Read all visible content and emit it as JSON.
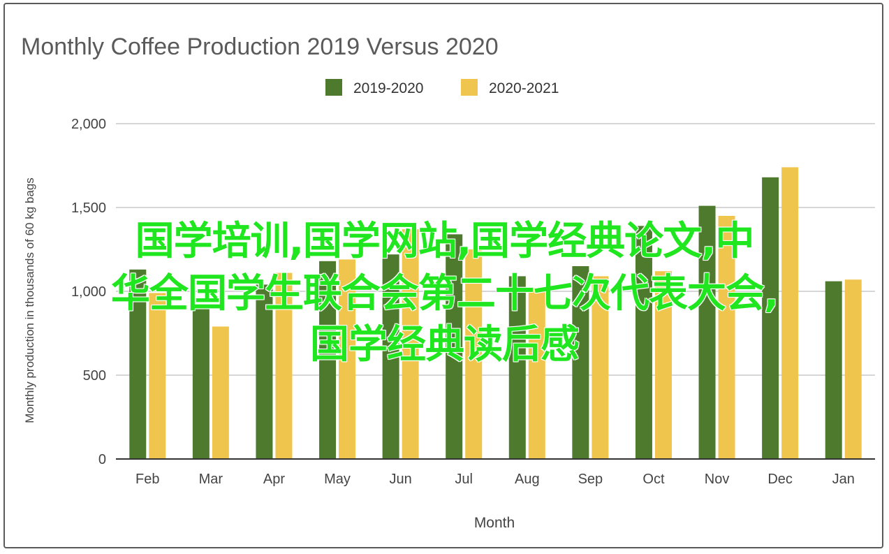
{
  "chart_data": {
    "type": "bar",
    "title": "Monthly Coffee Production 2019 Versus 2020",
    "xlabel": "Month",
    "ylabel": "Monthly production in thousands of 60 kg bags",
    "categories": [
      "Feb",
      "Mar",
      "Apr",
      "May",
      "Jun",
      "Jul",
      "Aug",
      "Sep",
      "Oct",
      "Nov",
      "Dec",
      "Jan"
    ],
    "series": [
      {
        "name": "2019-2020",
        "color": "#4e7a2d",
        "values": [
          1130,
          910,
          1040,
          1180,
          1220,
          1340,
          1090,
          1150,
          1390,
          1510,
          1680,
          1060
        ]
      },
      {
        "name": "2020-2021",
        "color": "#f0c54e",
        "values": [
          990,
          790,
          1110,
          1190,
          1370,
          1250,
          1020,
          1090,
          1120,
          1450,
          1740,
          1070
        ]
      }
    ],
    "ylim": [
      0,
      2000
    ],
    "yticks": [
      0,
      500,
      1000,
      1500,
      2000
    ],
    "ytick_labels": [
      "0",
      "500",
      "1,000",
      "1,500",
      "2,000"
    ],
    "grid": true,
    "legend_position": "top-center"
  },
  "colors": {
    "series_1": "#4e7a2d",
    "series_2": "#f0c54e",
    "grid": "#d6d6d6",
    "axis_text": "#444444",
    "title_text": "#5a5a5a",
    "overlay_text": "#1fe61f"
  },
  "overlay": {
    "line1": "国学培训,国学网站,国学经典论文,中",
    "line2": "华全国学生联合会第二十七次代表大会,",
    "line3": "国学经典读后感"
  }
}
